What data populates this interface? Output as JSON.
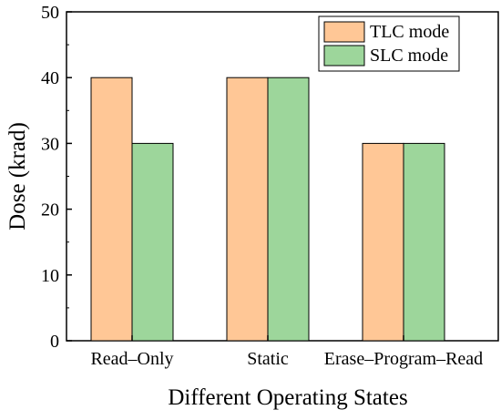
{
  "chart_data": {
    "type": "bar",
    "title": "",
    "xlabel": "Different Operating States",
    "ylabel": "Dose (krad)",
    "categories": [
      "Read–Only",
      "Static",
      "Erase–Program–Read"
    ],
    "series": [
      {
        "name": "TLC mode",
        "values": [
          40,
          40,
          30
        ],
        "color": "#FFC796"
      },
      {
        "name": "SLC mode",
        "values": [
          30,
          40,
          30
        ],
        "color": "#9DD69B"
      }
    ],
    "ylim": [
      0,
      50
    ],
    "yticks": [
      0,
      10,
      20,
      30,
      40,
      50
    ],
    "grid": false,
    "legend_position": "top-right"
  }
}
